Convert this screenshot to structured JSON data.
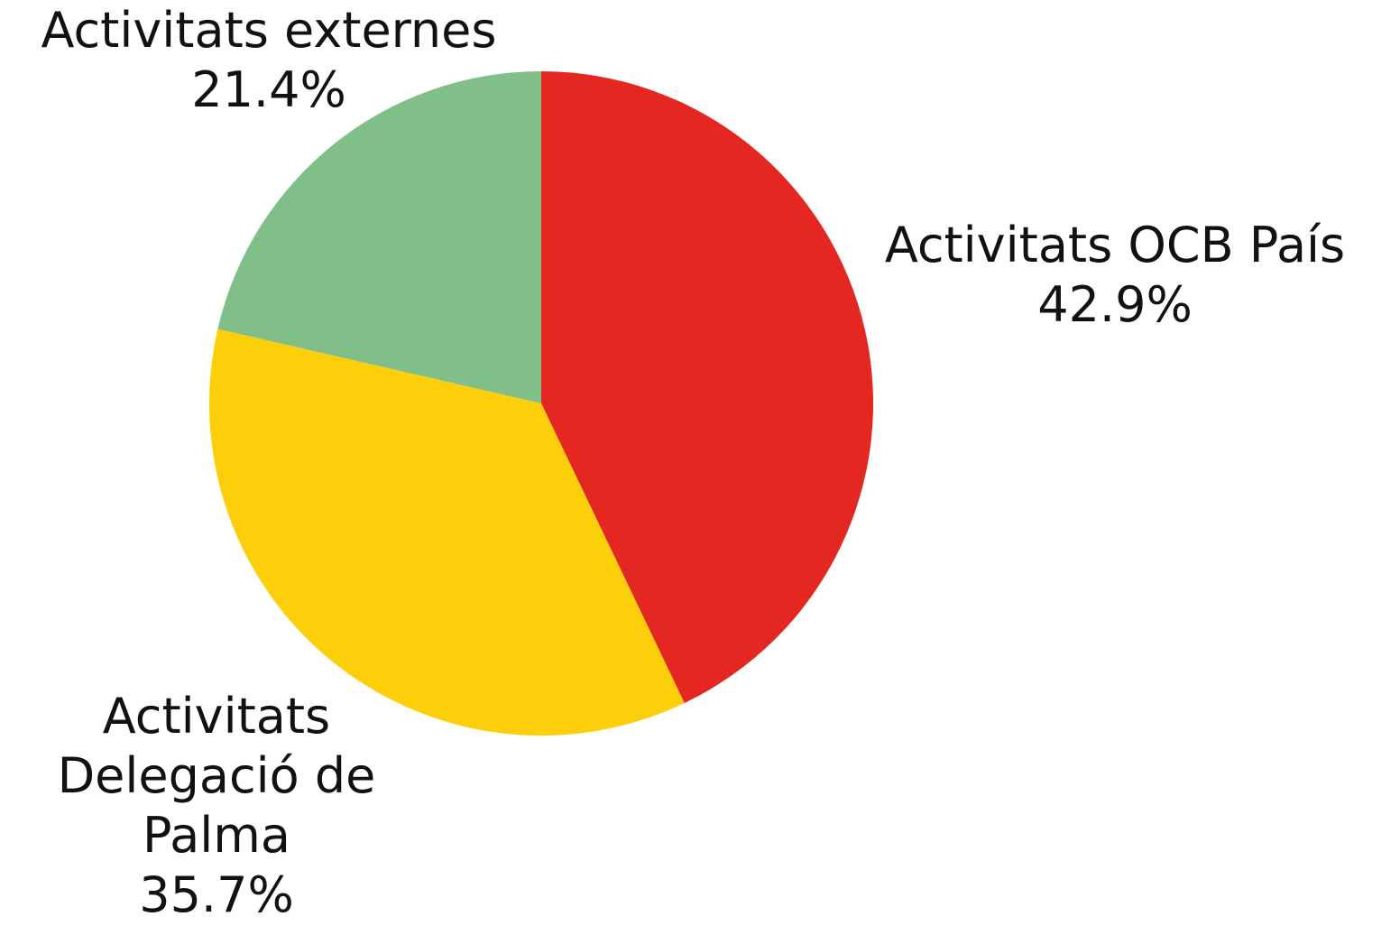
{
  "chart_data": {
    "type": "pie",
    "start_angle_deg": 0,
    "direction": "clockwise",
    "slices": [
      {
        "label_lines": [
          "Activitats OCB País"
        ],
        "value": 42.9,
        "value_label": "42.9%",
        "color": "#e52722"
      },
      {
        "label_lines": [
          "Activitats",
          "Delegació de",
          "Palma"
        ],
        "value": 35.7,
        "value_label": "35.7%",
        "color": "#fdcf0a"
      },
      {
        "label_lines": [
          "Activitats externes"
        ],
        "value": 21.4,
        "value_label": "21.4%",
        "color": "#80bf89"
      }
    ]
  }
}
